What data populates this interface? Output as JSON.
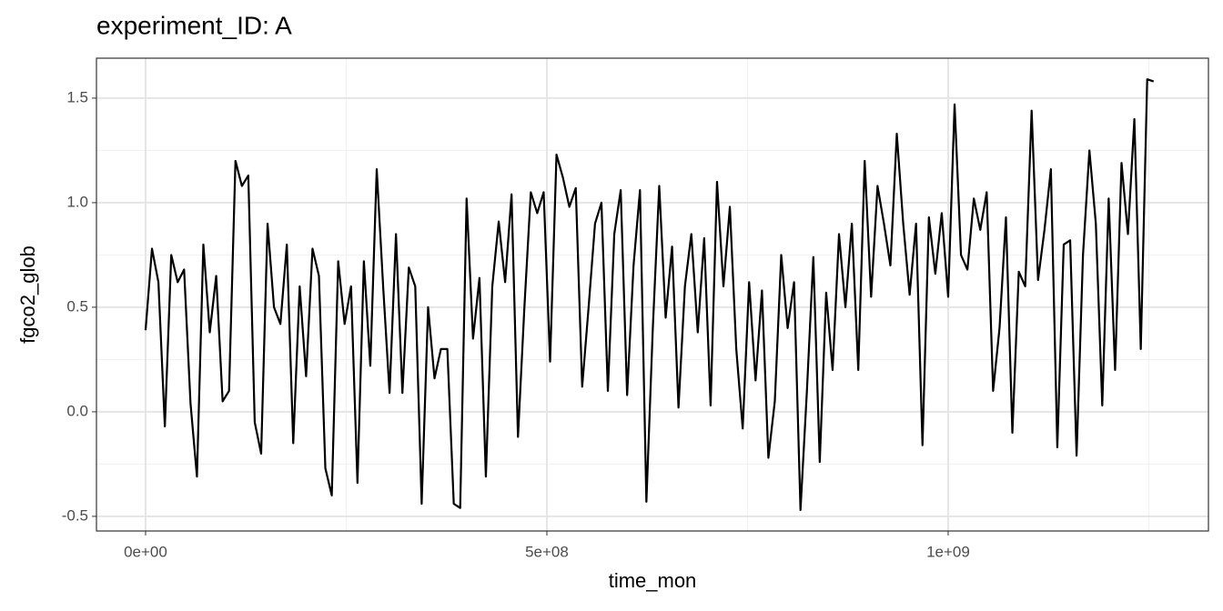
{
  "chart_data": {
    "type": "line",
    "title": "experiment_ID: A",
    "x_label": "time_mon",
    "y_label": "fgco2_glob",
    "x": [
      0,
      8000000.0,
      16000000.0,
      24000000.0,
      32000000.0,
      40000000.0,
      48000000.0,
      56000000.0,
      64000000.0,
      72000000.0,
      80000000.0,
      88000000.0,
      96000000.0,
      104000000.0,
      112000000.0,
      120000000.0,
      128000000.0,
      136000000.0,
      144000000.0,
      152000000.0,
      160000000.0,
      168000000.0,
      176000000.0,
      184000000.0,
      192000000.0,
      200000000.0,
      208000000.0,
      216000000.0,
      224000000.0,
      232000000.0,
      240000000.0,
      248000000.0,
      256000000.0,
      264000000.0,
      272000000.0,
      280000000.0,
      288000000.0,
      296000000.0,
      304000000.0,
      312000000.0,
      320000000.0,
      328000000.0,
      336000000.0,
      344000000.0,
      352000000.0,
      360000000.0,
      368000000.0,
      376000000.0,
      384000000.0,
      392000000.0,
      400000000.0,
      408000000.0,
      416000000.0,
      424000000.0,
      432000000.0,
      440000000.0,
      448000000.0,
      456000000.0,
      464000000.0,
      472000000.0,
      480000000.0,
      488000000.0,
      496000000.0,
      504000000.0,
      512000000.0,
      520000000.0,
      528000000.0,
      536000000.0,
      544000000.0,
      552000000.0,
      560000000.0,
      568000000.0,
      576000000.0,
      584000000.0,
      592000000.0,
      600000000.0,
      608000000.0,
      616000000.0,
      624000000.0,
      632000000.0,
      640000000.0,
      648000000.0,
      656000000.0,
      664000000.0,
      672000000.0,
      680000000.0,
      688000000.0,
      696000000.0,
      704000000.0,
      712000000.0,
      720000000.0,
      728000000.0,
      736000000.0,
      744000000.0,
      752000000.0,
      760000000.0,
      768000000.0,
      776000000.0,
      784000000.0,
      792000000.0,
      800000000.0,
      808000000.0,
      816000000.0,
      824000000.0,
      832000000.0,
      840000000.0,
      848000000.0,
      856000000.0,
      864000000.0,
      872000000.0,
      880000000.0,
      888000000.0,
      896000000.0,
      904000000.0,
      912000000.0,
      920000000.0,
      928000000.0,
      936000000.0,
      944000000.0,
      952000000.0,
      960000000.0,
      968000000.0,
      976000000.0,
      984000000.0,
      992000000.0,
      1000000000.0,
      1008000000.0,
      1016000000.0,
      1024000000.0,
      1032000000.0,
      1040000000.0,
      1048000000.0,
      1056000000.0,
      1064000000.0,
      1072000000.0,
      1080000000.0,
      1088000000.0,
      1096000000.0,
      1104000000.0,
      1112000000.0,
      1120000000.0,
      1128000000.0,
      1136000000.0,
      1144000000.0,
      1152000000.0,
      1160000000.0,
      1168000000.0,
      1176000000.0,
      1184000000.0,
      1192000000.0,
      1200000000.0,
      1208000000.0,
      1216000000.0,
      1224000000.0,
      1232000000.0,
      1240000000.0,
      1248000000.0,
      1256000000.0
    ],
    "series": [
      {
        "name": "fgco2_glob",
        "color": "#000000",
        "values": [
          0.39,
          0.78,
          0.62,
          -0.07,
          0.75,
          0.62,
          0.68,
          0.04,
          -0.31,
          0.8,
          0.38,
          0.65,
          0.05,
          0.1,
          1.2,
          1.08,
          1.13,
          -0.05,
          -0.2,
          0.9,
          0.5,
          0.42,
          0.8,
          -0.15,
          0.6,
          0.17,
          0.78,
          0.65,
          -0.27,
          -0.4,
          0.72,
          0.42,
          0.6,
          -0.34,
          0.72,
          0.22,
          1.16,
          0.6,
          0.09,
          0.85,
          0.09,
          0.69,
          0.6,
          -0.44,
          0.5,
          0.16,
          0.3,
          0.3,
          -0.44,
          -0.46,
          1.02,
          0.35,
          0.64,
          -0.31,
          0.6,
          0.91,
          0.62,
          1.04,
          -0.12,
          0.5,
          1.05,
          0.95,
          1.05,
          0.24,
          1.23,
          1.12,
          0.98,
          1.07,
          0.12,
          0.5,
          0.9,
          1.0,
          0.1,
          0.85,
          1.06,
          0.08,
          0.7,
          1.06,
          -0.43,
          0.4,
          1.08,
          0.45,
          0.79,
          0.02,
          0.6,
          0.85,
          0.38,
          0.83,
          0.03,
          1.1,
          0.6,
          0.98,
          0.3,
          -0.08,
          0.62,
          0.15,
          0.58,
          -0.22,
          0.05,
          0.75,
          0.4,
          0.62,
          -0.47,
          0.1,
          0.74,
          -0.24,
          0.57,
          0.2,
          0.85,
          0.5,
          0.9,
          0.2,
          1.2,
          0.55,
          1.08,
          0.9,
          0.7,
          1.33,
          0.9,
          0.56,
          0.9,
          -0.16,
          0.93,
          0.66,
          0.95,
          0.55,
          1.47,
          0.75,
          0.68,
          1.02,
          0.87,
          1.05,
          0.1,
          0.4,
          0.93,
          -0.1,
          0.67,
          0.6,
          1.44,
          0.63,
          0.87,
          1.16,
          -0.17,
          0.8,
          0.82,
          -0.21,
          0.75,
          1.25,
          0.9,
          0.03,
          1.02,
          0.2,
          1.19,
          0.85,
          1.4,
          0.3,
          1.59,
          1.58
        ]
      }
    ],
    "xlim": [
      -61200000,
      1324300000
    ],
    "ylim": [
      -0.57,
      1.691
    ],
    "xticks": [
      {
        "value": 0,
        "label": "0e+00"
      },
      {
        "value": 500000000,
        "label": "5e+08"
      },
      {
        "value": 1000000000,
        "label": "1e+09"
      }
    ],
    "yticks": [
      -0.5,
      {
        "value": 0,
        "label": "0.0"
      },
      0.5,
      {
        "value": 1,
        "label": "1.0"
      },
      1.5
    ],
    "x_minor_grid": [
      250000000,
      750000000,
      1250000000
    ],
    "y_minor_grid": [
      -0.25,
      0.25,
      0.75,
      1.25
    ],
    "grid": true
  }
}
